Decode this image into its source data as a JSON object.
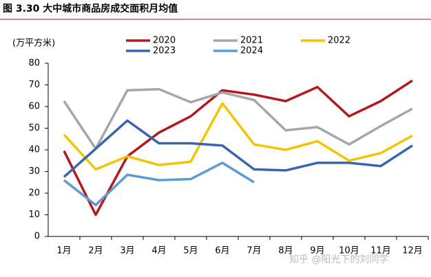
{
  "chart_data": {
    "type": "line",
    "title": "图 3.30 大中城市商品房成交面积月均值",
    "y_label": "(万平方米)",
    "categories": [
      "1月",
      "2月",
      "3月",
      "4月",
      "5月",
      "6月",
      "7月",
      "8月",
      "9月",
      "10月",
      "11月",
      "12月"
    ],
    "series": [
      {
        "name": "2020",
        "color": "#b5171f",
        "values": [
          39.5,
          10,
          37,
          48,
          55.5,
          67.5,
          65.5,
          62.5,
          69,
          55.5,
          62.5,
          72
        ]
      },
      {
        "name": "2021",
        "color": "#a6a6a6",
        "values": [
          62.5,
          40.5,
          67.5,
          68,
          62,
          66.5,
          63,
          49,
          50.5,
          42.5,
          51,
          59
        ]
      },
      {
        "name": "2022",
        "color": "#f5c400",
        "values": [
          47,
          31,
          37,
          33,
          34.5,
          61.5,
          42.5,
          40,
          44,
          35,
          38.5,
          46.5
        ]
      },
      {
        "name": "2023",
        "color": "#3a64b0",
        "values": [
          27.5,
          40.5,
          53.5,
          43,
          43,
          42,
          31,
          30.5,
          34,
          34,
          32.5,
          42
        ]
      },
      {
        "name": "2024",
        "color": "#5b9bd5",
        "values": [
          26,
          14.5,
          28.5,
          26,
          26.5,
          34,
          25,
          null,
          null,
          null,
          null,
          null
        ]
      }
    ],
    "ylim": [
      0,
      80
    ],
    "yticks": [
      0,
      10,
      20,
      30,
      40,
      50,
      60,
      70,
      80
    ],
    "grid": false,
    "legend": "top"
  },
  "watermark": "知乎 @阳光下的刘同学"
}
